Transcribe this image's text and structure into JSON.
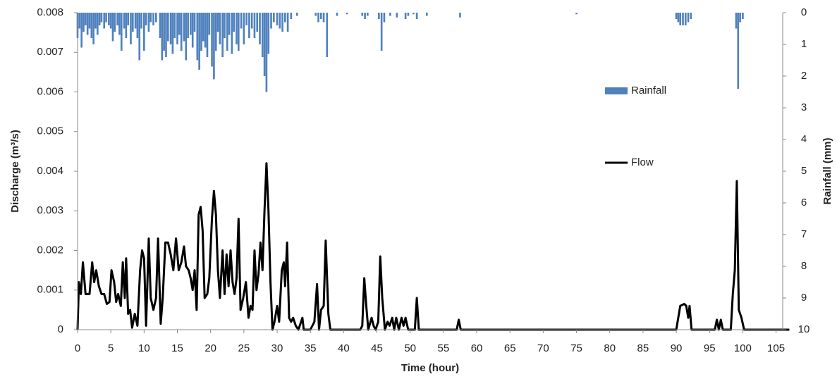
{
  "chart_data": {
    "type": "combo",
    "x_label": "Time (hour)",
    "y_label": "Discharge (m³/s)",
    "y2_label": "Rainfall (mm)",
    "xlim": [
      0,
      106
    ],
    "xticks": [
      0,
      5,
      10,
      15,
      20,
      25,
      30,
      35,
      40,
      45,
      50,
      55,
      60,
      65,
      70,
      75,
      80,
      85,
      90,
      95,
      100,
      105
    ],
    "ylim": [
      0,
      0.008
    ],
    "yticks": [
      0,
      0.001,
      0.002,
      0.003,
      0.004,
      0.005,
      0.006,
      0.007,
      0.008
    ],
    "y2lim": [
      10,
      0
    ],
    "y2ticks": [
      0,
      1,
      2,
      3,
      4,
      5,
      6,
      7,
      8,
      9,
      10
    ],
    "series": [
      {
        "name": "Rainfall",
        "type": "bar",
        "axis": "y2",
        "color": "#4f81bd",
        "x": [
          0,
          0.3,
          0.6,
          0.9,
          1.2,
          1.5,
          1.8,
          2.1,
          2.4,
          2.7,
          3,
          3.3,
          3.6,
          4,
          4.3,
          4.7,
          5,
          5.3,
          5.6,
          6,
          6.3,
          6.6,
          7,
          7.3,
          7.6,
          8,
          8.3,
          8.7,
          9,
          9.3,
          9.6,
          10,
          10.3,
          10.7,
          11,
          11.4,
          11.8,
          12.4,
          12.7,
          13,
          13.3,
          13.6,
          14,
          14.3,
          14.6,
          15,
          15.3,
          15.6,
          16,
          16.3,
          16.6,
          17,
          17.3,
          17.6,
          18,
          18.3,
          18.6,
          18.9,
          19.2,
          19.5,
          19.8,
          20.2,
          20.5,
          20.8,
          21.1,
          21.4,
          21.8,
          22.1,
          22.5,
          22.8,
          23.2,
          23.5,
          23.9,
          24.2,
          24.6,
          25,
          25.4,
          25.8,
          26.2,
          26.6,
          27,
          27.4,
          27.8,
          28.1,
          28.4,
          28.7,
          29.1,
          29.5,
          30,
          30.4,
          30.8,
          31.2,
          31.6,
          32.1,
          33,
          35.8,
          36.2,
          36.6,
          37,
          37.5,
          39,
          40.5,
          42.8,
          43.2,
          43.6,
          45.3,
          45.7,
          46.1,
          47,
          48,
          49.3,
          49.7,
          50.5,
          51,
          52.5,
          57.5,
          75,
          90,
          90.3,
          90.6,
          91,
          91.4,
          91.8,
          92.2,
          99,
          99.3,
          99.6,
          100
        ],
        "values": [
          0.8,
          0.5,
          1.1,
          0.6,
          0.4,
          0.7,
          0.5,
          0.8,
          1.0,
          0.5,
          0.7,
          0.4,
          0.3,
          0.5,
          0.3,
          0.4,
          0.5,
          0.9,
          0.6,
          0.4,
          0.7,
          1.2,
          0.5,
          0.8,
          0.4,
          1.0,
          0.6,
          0.5,
          0.8,
          1.5,
          0.5,
          1.2,
          0.4,
          0.6,
          0.3,
          0.4,
          0.3,
          0.8,
          1.5,
          1.2,
          1.4,
          0.9,
          1.0,
          1.3,
          0.8,
          1.0,
          0.7,
          1.2,
          0.9,
          1.5,
          0.8,
          0.7,
          1.1,
          0.6,
          1.5,
          1.8,
          1.2,
          0.9,
          1.1,
          1.4,
          0.7,
          1.7,
          2.1,
          1.2,
          0.6,
          1.0,
          1.4,
          0.8,
          1.2,
          0.7,
          1.3,
          0.6,
          1.0,
          1.2,
          0.5,
          1.0,
          0.4,
          0.8,
          0.5,
          0.8,
          0.6,
          1.0,
          1.4,
          2.0,
          2.5,
          1.3,
          0.5,
          0.3,
          0.4,
          0.5,
          0.6,
          0.3,
          0.6,
          0.2,
          0.1,
          0.1,
          0.3,
          0.2,
          0.3,
          1.4,
          0.1,
          0.05,
          0.1,
          0.2,
          0.1,
          0.2,
          1.2,
          0.3,
          0.1,
          0.15,
          0.2,
          0.1,
          0.05,
          0.2,
          0.1,
          0.15,
          0.05,
          0.2,
          0.3,
          0.4,
          0.4,
          0.4,
          0.3,
          0.2,
          0.5,
          2.4,
          0.3,
          0.2
        ]
      },
      {
        "name": "Flow",
        "type": "line",
        "axis": "y",
        "color": "#000000",
        "x": [
          0,
          0.2,
          0.5,
          0.8,
          1.2,
          1.8,
          2.2,
          2.5,
          2.8,
          3.2,
          3.6,
          4,
          4.4,
          4.8,
          5.1,
          5.5,
          5.8,
          6.1,
          6.5,
          6.8,
          7.1,
          7.3,
          7.6,
          7.9,
          8.2,
          8.6,
          9,
          9.4,
          9.7,
          10,
          10.3,
          10.7,
          11,
          11.4,
          11.8,
          12.1,
          12.5,
          12.8,
          13.2,
          13.6,
          14,
          14.4,
          14.8,
          15.2,
          15.6,
          16,
          16.3,
          16.7,
          17,
          17.3,
          17.6,
          17.9,
          18.2,
          18.5,
          18.8,
          19.1,
          19.5,
          19.8,
          20.2,
          20.5,
          20.8,
          21.1,
          21.4,
          21.8,
          22.1,
          22.4,
          22.7,
          23,
          23.3,
          23.6,
          23.9,
          24.2,
          24.5,
          24.9,
          25.3,
          25.7,
          26,
          26.3,
          26.6,
          26.9,
          27.2,
          27.5,
          27.8,
          28.1,
          28.4,
          28.7,
          29,
          29.3,
          29.6,
          30,
          30.3,
          30.7,
          31,
          31.2,
          31.5,
          31.8,
          32.1,
          32.4,
          32.8,
          33.2,
          33.8,
          34,
          35,
          35.6,
          36,
          36.3,
          36.6,
          37,
          37.3,
          37.7,
          38,
          42.5,
          42.8,
          43.1,
          43.4,
          43.7,
          44.2,
          44.5,
          44.8,
          45.2,
          45.5,
          45.8,
          46.2,
          46.6,
          46.9,
          47.3,
          47.6,
          47.9,
          48.3,
          48.7,
          49,
          49.3,
          49.7,
          50.7,
          51,
          51.3,
          57,
          57.3,
          57.6,
          90,
          90.3,
          90.6,
          91.2,
          91.5,
          91.8,
          92,
          92.3,
          95.8,
          96.1,
          96.4,
          96.7,
          97,
          98.2,
          98.5,
          98.8,
          99.1,
          99.4,
          99.8,
          100.2,
          107
        ],
        "values": [
          0,
          0.0012,
          0.0009,
          0.0017,
          0.0009,
          0.0009,
          0.0017,
          0.0012,
          0.0015,
          0.0011,
          0.0009,
          0.0009,
          0.00065,
          0.0007,
          0.0015,
          0.0012,
          0.0007,
          0.0009,
          0.0006,
          0.0017,
          0.0008,
          0.0018,
          0.0004,
          0.0005,
          5e-05,
          0.0004,
          0.0001,
          0.0015,
          0.002,
          0.0018,
          0.0001,
          0.0023,
          0.0008,
          0.0005,
          0.0008,
          0.0023,
          0.00015,
          0.0008,
          0.0022,
          0.0022,
          0.0019,
          0.0015,
          0.0023,
          0.0015,
          0.0017,
          0.0021,
          0.0016,
          0.0015,
          0.0013,
          0.001,
          0.0015,
          0.0005,
          0.0029,
          0.0031,
          0.0025,
          0.0008,
          0.0009,
          0.0013,
          0.0028,
          0.0035,
          0.0029,
          0.0015,
          0.0008,
          0.002,
          0.0009,
          0.0019,
          0.0011,
          0.002,
          0.0012,
          0.0009,
          0.0013,
          0.0028,
          0.0005,
          0.0008,
          0.0012,
          0.0003,
          0.0006,
          0.0005,
          0.002,
          0.001,
          0.0014,
          0.0022,
          0.0015,
          0.003,
          0.0042,
          0.003,
          0.0012,
          0,
          0.0002,
          0.0006,
          0.0002,
          0.0015,
          0.0017,
          0.0011,
          0.0022,
          0.0003,
          0.0002,
          0.0003,
          0.0001,
          0,
          0.0003,
          0,
          0,
          0.0002,
          0.00115,
          0,
          0.0005,
          0.0006,
          0.00225,
          0.0004,
          0,
          0,
          0.0001,
          0.0013,
          0.0006,
          0,
          0.0003,
          0.0001,
          0,
          0.0002,
          0.00185,
          0.0008,
          0,
          0.0002,
          0.0001,
          0.0003,
          0,
          0.0003,
          0,
          0.0003,
          0.0001,
          0.0003,
          0,
          0,
          0.0008,
          0,
          0,
          0.00025,
          0,
          0,
          0.0003,
          0.0006,
          0.00065,
          0.0006,
          0.0003,
          0.0006,
          0,
          0,
          0.00025,
          0,
          0.00025,
          0,
          0,
          0.0009,
          0.0015,
          0.00375,
          0.0005,
          0.0003,
          0,
          0
        ]
      }
    ]
  }
}
